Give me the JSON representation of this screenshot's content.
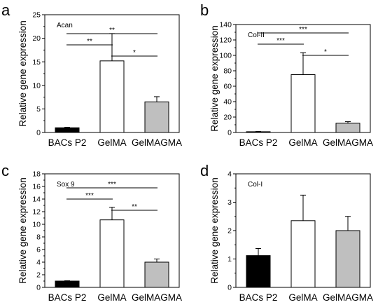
{
  "chart_data": [
    {
      "type": "bar",
      "panel": "a",
      "gene": "Acan",
      "ylabel": "Relative gene expression",
      "categories": [
        "BACs P2",
        "GelMA",
        "GelMAGMA"
      ],
      "values": [
        1.0,
        15.2,
        6.5
      ],
      "errors": [
        0.1,
        5.8,
        1.1
      ],
      "bar_colors": [
        "#000000",
        "#ffffff",
        "#bfbfbf"
      ],
      "ylim": [
        0,
        25
      ],
      "yticks": [
        0,
        5,
        10,
        15,
        20,
        25
      ],
      "ytick_labels": [
        "0",
        "5",
        "10",
        "15",
        "20",
        "25"
      ],
      "significance": [
        {
          "from": 0,
          "to": 2,
          "label": "**"
        },
        {
          "from": 0,
          "to": 1,
          "label": "**"
        },
        {
          "from": 1,
          "to": 2,
          "label": "*"
        }
      ]
    },
    {
      "type": "bar",
      "panel": "b",
      "gene": "Col-II",
      "ylabel": "Relative gene expression",
      "categories": [
        "BACs P2",
        "GelMA",
        "GelMAGMA"
      ],
      "values": [
        1.0,
        75.0,
        12.0
      ],
      "errors": [
        0.3,
        28.5,
        2.0
      ],
      "bar_colors": [
        "#000000",
        "#ffffff",
        "#bfbfbf"
      ],
      "ylim": [
        0,
        140
      ],
      "yticks": [
        0,
        20,
        40,
        60,
        80,
        100,
        120,
        140
      ],
      "ytick_labels": [
        "0",
        "20",
        "40",
        "60",
        "80",
        "100",
        "120",
        "140"
      ],
      "significance": [
        {
          "from": 0,
          "to": 2,
          "label": "***"
        },
        {
          "from": 0,
          "to": 1,
          "label": "***"
        },
        {
          "from": 1,
          "to": 2,
          "label": "*"
        }
      ]
    },
    {
      "type": "bar",
      "panel": "c",
      "gene": "Sox 9",
      "ylabel": "Relative gene expression",
      "categories": [
        "BACs P2",
        "GelMA",
        "GelMAGMA"
      ],
      "values": [
        1.0,
        10.7,
        4.0
      ],
      "errors": [
        0.05,
        2.0,
        0.5
      ],
      "bar_colors": [
        "#000000",
        "#ffffff",
        "#bfbfbf"
      ],
      "ylim": [
        0,
        18
      ],
      "yticks": [
        0,
        2,
        4,
        6,
        8,
        10,
        12,
        14,
        16,
        18
      ],
      "ytick_labels": [
        "0",
        "2",
        "4",
        "6",
        "8",
        "10",
        "12",
        "14",
        "16",
        "18"
      ],
      "significance": [
        {
          "from": 0,
          "to": 2,
          "label": "***"
        },
        {
          "from": 0,
          "to": 1,
          "label": "***"
        },
        {
          "from": 1,
          "to": 2,
          "label": "**"
        }
      ]
    },
    {
      "type": "bar",
      "panel": "d",
      "gene": "Col-I",
      "ylabel": "Relative gene expression",
      "categories": [
        "BACs P2",
        "GelMA",
        "GelMAGMA"
      ],
      "values": [
        1.12,
        2.35,
        2.0
      ],
      "errors": [
        0.25,
        0.9,
        0.5
      ],
      "bar_colors": [
        "#000000",
        "#ffffff",
        "#bfbfbf"
      ],
      "ylim": [
        0,
        4
      ],
      "yticks": [
        0,
        1,
        2,
        3,
        4
      ],
      "ytick_labels": [
        "0",
        "1",
        "2",
        "3",
        "4"
      ],
      "significance": []
    }
  ]
}
